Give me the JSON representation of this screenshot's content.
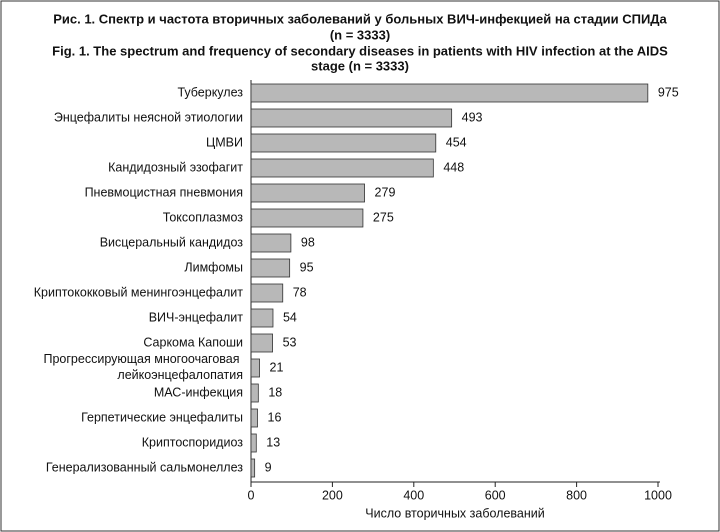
{
  "chart_data": {
    "type": "hbar",
    "title": [
      "Рис. 1. Спектр и частота вторичных заболеваний у больных ВИЧ-инфекцией на стадии СПИДа",
      "(n = 3333)",
      "Fig. 1. The spectrum and frequency of secondary diseases in patients with HIV infection at the AIDS",
      "stage (n = 3333)"
    ],
    "x_label": "Число вторичных заболеваний",
    "categories": [
      "Туберкулез",
      "Энцефалиты неясной этиологии",
      "ЦМВИ",
      "Кандидозный эзофагит",
      "Пневмоцистная пневмония",
      "Токсоплазмоз",
      "Висцеральный кандидоз",
      "Лимфомы",
      "Криптококковый менингоэнцефалит",
      "ВИЧ-энцефалит",
      "Саркома Капоши",
      "Прогрессирующая многоочаговая лейкоэнцефалопатия",
      "МАС-инфекция",
      "Герпетические энцефалиты",
      "Криптоспоридиоз",
      "Генерализованный сальмонеллез"
    ],
    "values": [
      975,
      493,
      454,
      448,
      279,
      275,
      98,
      95,
      78,
      54,
      53,
      21,
      18,
      16,
      13,
      9
    ],
    "color": "#b8b8b8",
    "xlim": [
      0,
      1000
    ],
    "xticks": [
      0,
      200,
      400,
      600,
      800,
      1000
    ]
  }
}
